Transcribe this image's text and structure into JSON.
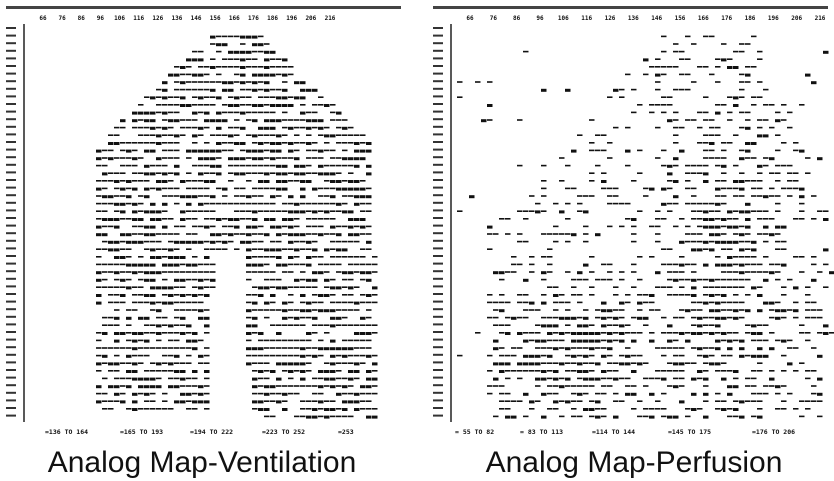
{
  "panels": [
    {
      "top_axis": [
        "66",
        "76",
        "86",
        "96",
        "106",
        "116",
        "126",
        "136",
        "146",
        "156",
        "166",
        "176",
        "186",
        "196",
        "206",
        "216"
      ],
      "ranges": [
        "=136 TO 164",
        "=165 TO 193",
        "=194 TO 222",
        "=223 TO 252",
        "=253"
      ],
      "caption": "Analog Map-Ventilation"
    },
    {
      "top_axis": [
        "66",
        "76",
        "86",
        "96",
        "106",
        "116",
        "126",
        "136",
        "146",
        "156",
        "166",
        "176",
        "186",
        "196",
        "206",
        "216"
      ],
      "ranges": [
        "= 55 TO 82",
        "= 83 TO 113",
        "=114 TO 144",
        "=145 TO 175",
        "=176 TO 206"
      ],
      "caption": "Analog Map-Perfusion"
    }
  ]
}
